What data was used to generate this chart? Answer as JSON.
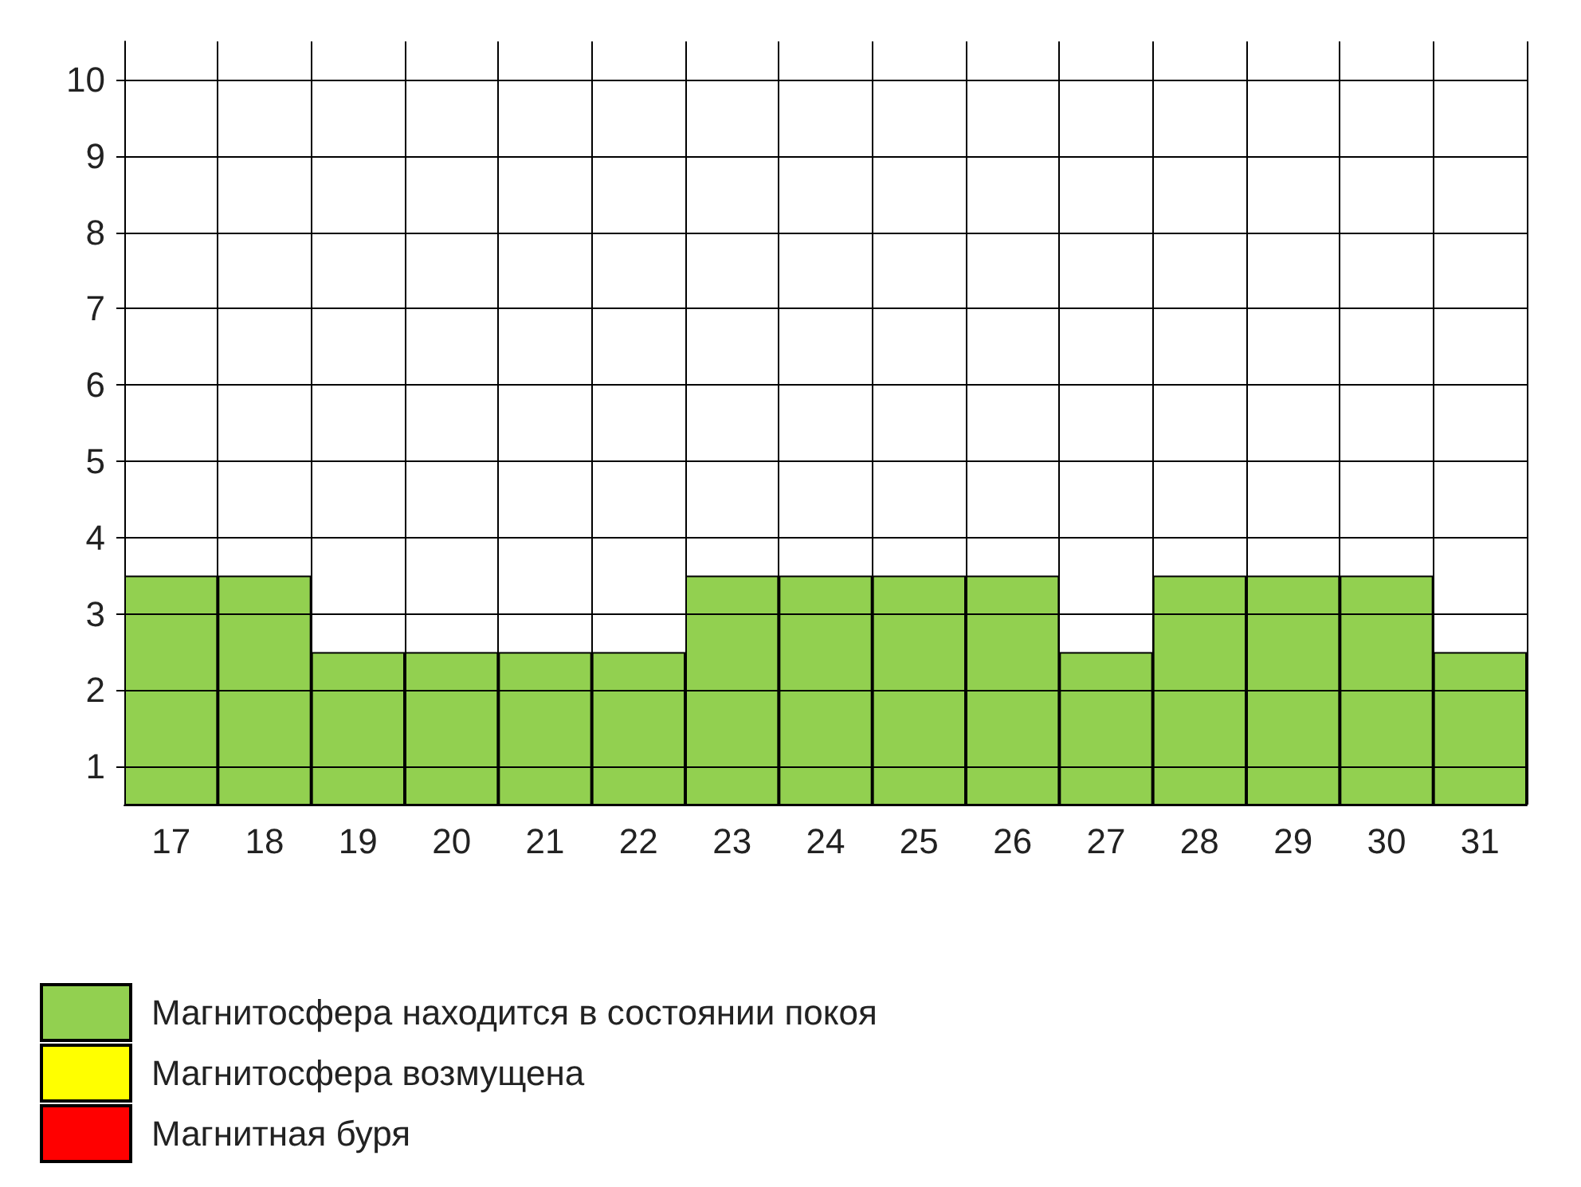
{
  "chart_data": {
    "type": "bar",
    "categories": [
      "17",
      "18",
      "19",
      "20",
      "21",
      "22",
      "23",
      "24",
      "25",
      "26",
      "27",
      "28",
      "29",
      "30",
      "31"
    ],
    "series": [
      {
        "name": "Магнитосфера находится в состоянии покоя",
        "color": "#92d050",
        "values": [
          3.5,
          3.5,
          2.5,
          2.5,
          2.5,
          2.5,
          3.5,
          3.5,
          3.5,
          3.5,
          2.5,
          3.5,
          3.5,
          3.5,
          2.5
        ]
      },
      {
        "name": "Магнитосфера возмущена",
        "color": "#ffff00",
        "values": [
          null,
          null,
          null,
          null,
          null,
          null,
          null,
          null,
          null,
          null,
          null,
          null,
          null,
          null,
          null
        ]
      },
      {
        "name": "Магнитная буря",
        "color": "#ff0000",
        "values": [
          null,
          null,
          null,
          null,
          null,
          null,
          null,
          null,
          null,
          null,
          null,
          null,
          null,
          null,
          null
        ]
      }
    ],
    "ylim": [
      0.5,
      10.5
    ],
    "yticks": [
      1,
      2,
      3,
      4,
      5,
      6,
      7,
      8,
      9,
      10
    ],
    "grid": true,
    "legend": "bottom left"
  }
}
